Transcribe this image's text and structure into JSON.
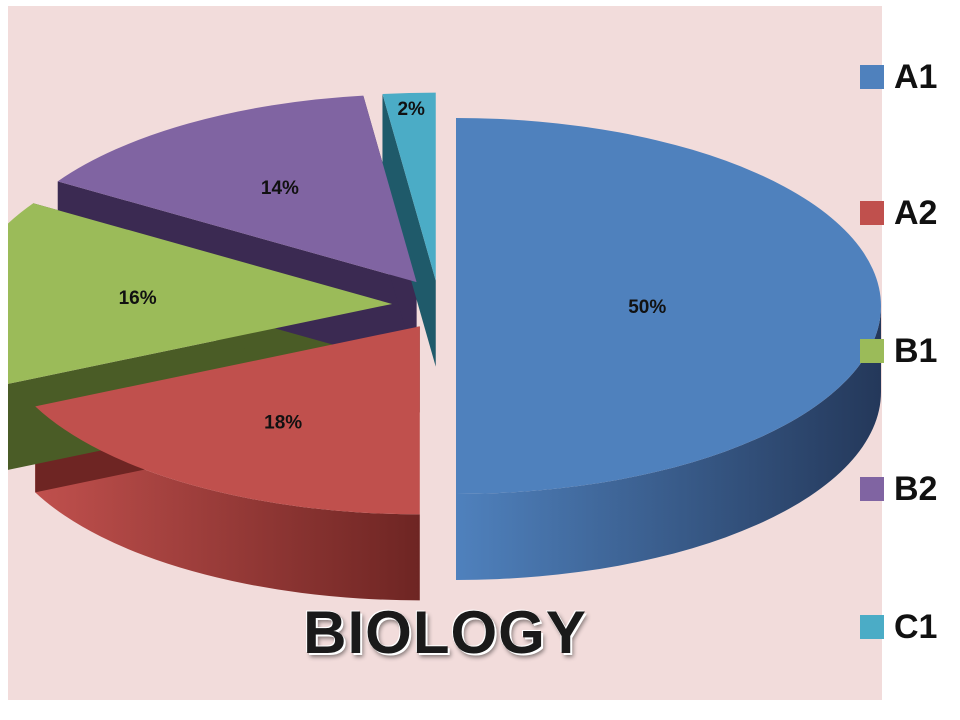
{
  "chart_data": {
    "type": "pie",
    "title": "BIOLOGY",
    "slices": [
      {
        "name": "A1",
        "value": 50,
        "label": "50%",
        "color": "#4f81bd",
        "dark": "#24385a"
      },
      {
        "name": "A2",
        "value": 18,
        "label": "18%",
        "color": "#c0504d",
        "dark": "#6e2523"
      },
      {
        "name": "B1",
        "value": 16,
        "label": "16%",
        "color": "#9bbb59",
        "dark": "#4a5c26"
      },
      {
        "name": "B2",
        "value": 14,
        "label": "14%",
        "color": "#8064a2",
        "dark": "#3b2a52"
      },
      {
        "name": "C1",
        "value": 2,
        "label": "2%",
        "color": "#4bacc6",
        "dark": "#1f5a6a"
      }
    ],
    "legend_position": "right",
    "exploded": true,
    "three_d": true
  },
  "colors": {
    "plot_background": "#f2dcdb"
  }
}
